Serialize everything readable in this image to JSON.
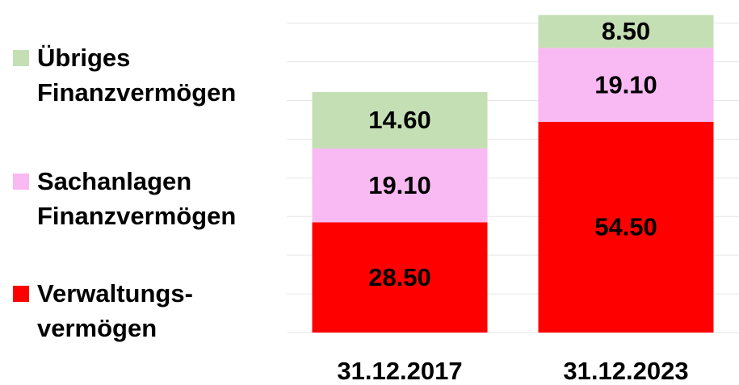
{
  "chart_data": {
    "type": "stacked_bar",
    "categories": [
      "31.12.2017",
      "31.12.2023"
    ],
    "series": [
      {
        "name": "Verwaltungs-\nvermögen",
        "color": "#ff0000",
        "values": [
          28.5,
          54.5
        ],
        "value_labels": [
          "28.50",
          "54.50"
        ]
      },
      {
        "name": "Sachanlagen\nFinanzvermögen",
        "color": "#f9b9f2",
        "values": [
          19.1,
          19.1
        ],
        "value_labels": [
          "19.10",
          "19.10"
        ]
      },
      {
        "name": "Übriges\nFinanzvermögen",
        "color": "#c5dfb4",
        "values": [
          14.6,
          8.5
        ],
        "value_labels": [
          "14.60",
          "8.50"
        ]
      }
    ],
    "ylim": [
      0,
      85
    ],
    "yticks": [
      0,
      10,
      20,
      30,
      40,
      50,
      60,
      70,
      80
    ],
    "grid": true,
    "legend": "left"
  }
}
